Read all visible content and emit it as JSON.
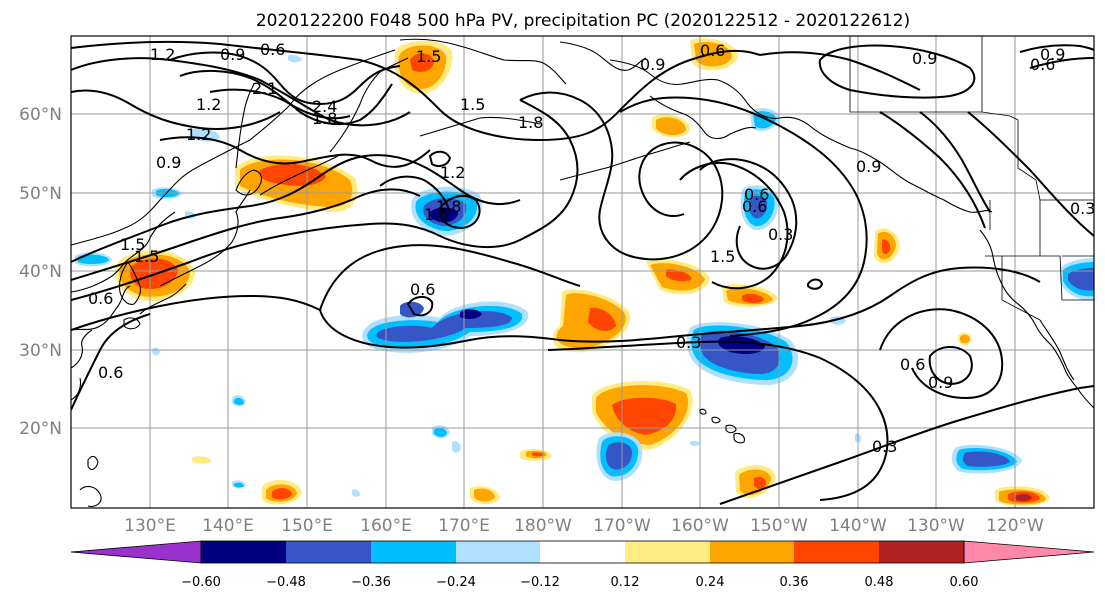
{
  "title": "2020122200 F048 500 hPa PV, precipitation PC (2020122512 - 2020122612)",
  "lat_labels": [
    "60°N",
    "50°N",
    "40°N",
    "30°N",
    "20°N"
  ],
  "lon_labels": [
    "130°E",
    "140°E",
    "150°E",
    "160°E",
    "170°E",
    "180°W",
    "170°W",
    "160°W",
    "150°W",
    "140°W",
    "130°W",
    "120°W"
  ],
  "colorbar": {
    "ticks": [
      "−0.60",
      "−0.48",
      "−0.36",
      "−0.24",
      "−0.12",
      "0.12",
      "0.24",
      "0.36",
      "0.48",
      "0.60"
    ],
    "colors": [
      "#9932cc",
      "#000080",
      "#3656c8",
      "#00bfff",
      "#b0e0ff",
      "#ffffff",
      "#ffeb80",
      "#ffa500",
      "#ff4500",
      "#b22222",
      "#ff88aa"
    ]
  },
  "contour_labels": [
    {
      "text": "1.2"
    },
    {
      "text": "0.9"
    },
    {
      "text": "0.6"
    },
    {
      "text": "1.5"
    },
    {
      "text": "2.1"
    },
    {
      "text": "1.2"
    },
    {
      "text": "2.4"
    },
    {
      "text": "1.8"
    },
    {
      "text": "1.2"
    },
    {
      "text": "1.5"
    },
    {
      "text": "1.8"
    },
    {
      "text": "1.2"
    },
    {
      "text": "0.9"
    },
    {
      "text": "1.8"
    },
    {
      "text": "1.5"
    },
    {
      "text": "0.6"
    },
    {
      "text": "0.9"
    },
    {
      "text": "0.6"
    },
    {
      "text": "0.9"
    },
    {
      "text": "0.6"
    },
    {
      "text": "1.5"
    },
    {
      "text": "0.3"
    },
    {
      "text": "1.5"
    },
    {
      "text": "0.9"
    },
    {
      "text": "0.3"
    },
    {
      "text": "0.6"
    },
    {
      "text": "0.6"
    },
    {
      "text": "0.3"
    },
    {
      "text": "0.6"
    },
    {
      "text": "0.9"
    },
    {
      "text": "0.3"
    },
    {
      "text": "1.5"
    },
    {
      "text": "0.6"
    },
    {
      "text": "0.9"
    },
    {
      "text": "0.6"
    }
  ]
}
